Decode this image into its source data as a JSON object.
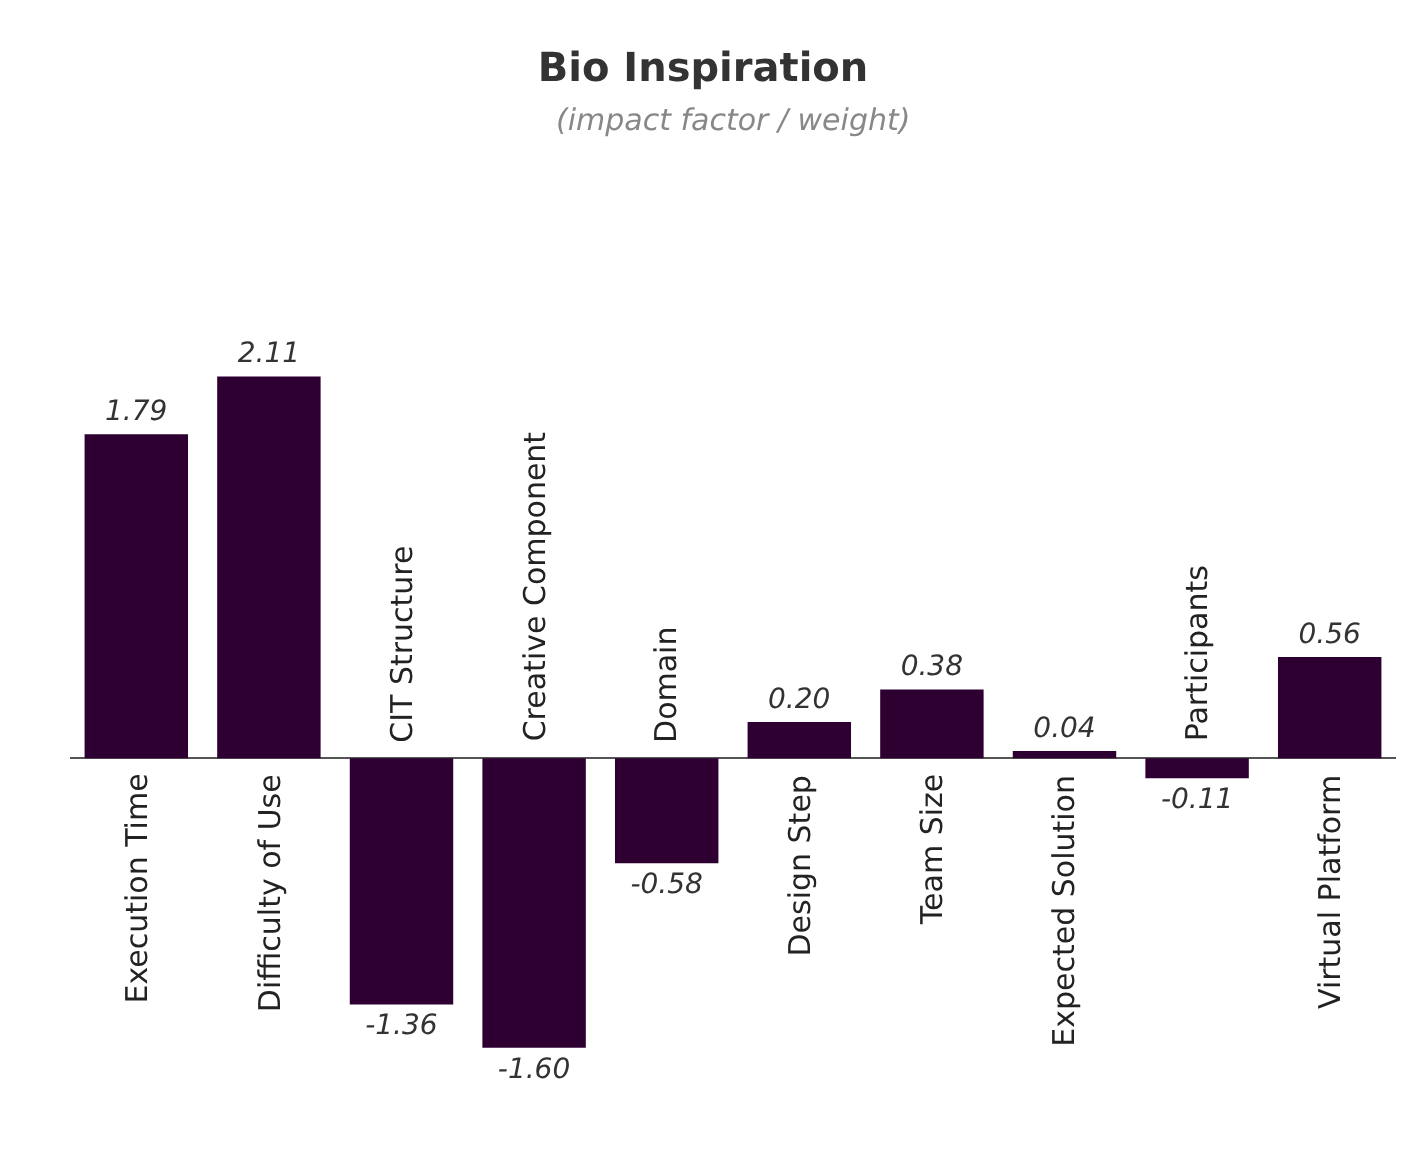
{
  "chart_data": {
    "type": "bar",
    "title": "Bio Inspiration",
    "subtitle": "(impact factor / weight)",
    "categories": [
      "Execution Time",
      "Difficulty of Use",
      "CIT Structure",
      "Creative Component",
      "Domain",
      "Design Step",
      "Team Size",
      "Expected Solution",
      "Participants",
      "Virtual Platform"
    ],
    "values": [
      1.79,
      2.11,
      -1.36,
      -1.6,
      -0.58,
      0.2,
      0.38,
      0.04,
      -0.11,
      0.56
    ],
    "value_labels": [
      "1.79",
      "2.11",
      "-1.36",
      "-1.60",
      "-0.58",
      "0.20",
      "0.38",
      "0.04",
      "-0.11",
      "0.56"
    ],
    "color": "#2e0032"
  }
}
